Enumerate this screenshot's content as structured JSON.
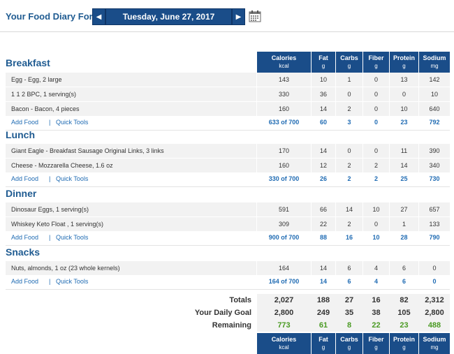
{
  "header": {
    "title": "Your Food Diary For:",
    "date": "Tuesday, June 27, 2017",
    "prev": "◀",
    "next": "▶"
  },
  "columns": [
    {
      "name": "Calories",
      "unit": "kcal"
    },
    {
      "name": "Fat",
      "unit": "g"
    },
    {
      "name": "Carbs",
      "unit": "g"
    },
    {
      "name": "Fiber",
      "unit": "g"
    },
    {
      "name": "Protein",
      "unit": "g"
    },
    {
      "name": "Sodium",
      "unit": "mg"
    }
  ],
  "links": {
    "add_food": "Add Food",
    "sep": "|",
    "quick_tools": "Quick Tools"
  },
  "meals": {
    "breakfast": {
      "title": "Breakfast",
      "items": [
        {
          "name": "Egg - Egg, 2 large",
          "v": [
            "143",
            "10",
            "1",
            "0",
            "13",
            "142"
          ]
        },
        {
          "name": "1 1 2 BPC, 1 serving(s)",
          "v": [
            "330",
            "36",
            "0",
            "0",
            "0",
            "10"
          ]
        },
        {
          "name": "Bacon - Bacon, 4 pieces",
          "v": [
            "160",
            "14",
            "2",
            "0",
            "10",
            "640"
          ]
        }
      ],
      "totals": [
        "633 of 700",
        "60",
        "3",
        "0",
        "23",
        "792"
      ]
    },
    "lunch": {
      "title": "Lunch",
      "items": [
        {
          "name": "Giant Eagle - Breakfast Sausage Original Links, 3 links",
          "v": [
            "170",
            "14",
            "0",
            "0",
            "11",
            "390"
          ]
        },
        {
          "name": "Cheese - Mozzarella Cheese, 1.6 oz",
          "v": [
            "160",
            "12",
            "2",
            "2",
            "14",
            "340"
          ]
        }
      ],
      "totals": [
        "330 of 700",
        "26",
        "2",
        "2",
        "25",
        "730"
      ]
    },
    "dinner": {
      "title": "Dinner",
      "items": [
        {
          "name": "Dinosaur Eggs, 1 serving(s)",
          "v": [
            "591",
            "66",
            "14",
            "10",
            "27",
            "657"
          ]
        },
        {
          "name": "Whiskey Keto Float , 1 serving(s)",
          "v": [
            "309",
            "22",
            "2",
            "0",
            "1",
            "133"
          ]
        }
      ],
      "totals": [
        "900 of 700",
        "88",
        "16",
        "10",
        "28",
        "790"
      ]
    },
    "snacks": {
      "title": "Snacks",
      "items": [
        {
          "name": "Nuts, almonds, 1 oz (23 whole kernels)",
          "v": [
            "164",
            "14",
            "6",
            "4",
            "6",
            "0"
          ]
        }
      ],
      "totals": [
        "164 of 700",
        "14",
        "6",
        "4",
        "6",
        "0"
      ]
    }
  },
  "summary": {
    "totals": {
      "label": "Totals",
      "v": [
        "2,027",
        "188",
        "27",
        "16",
        "82",
        "2,312"
      ]
    },
    "goal": {
      "label": "Your Daily Goal",
      "v": [
        "2,800",
        "249",
        "35",
        "38",
        "105",
        "2,800"
      ]
    },
    "remaining": {
      "label": "Remaining",
      "v": [
        "773",
        "61",
        "8",
        "22",
        "23",
        "488"
      ]
    }
  },
  "colors": {
    "header_bg": "#1a4d89",
    "title": "#1f5b91",
    "link": "#1f6bb3",
    "remaining": "#4a9a23"
  }
}
